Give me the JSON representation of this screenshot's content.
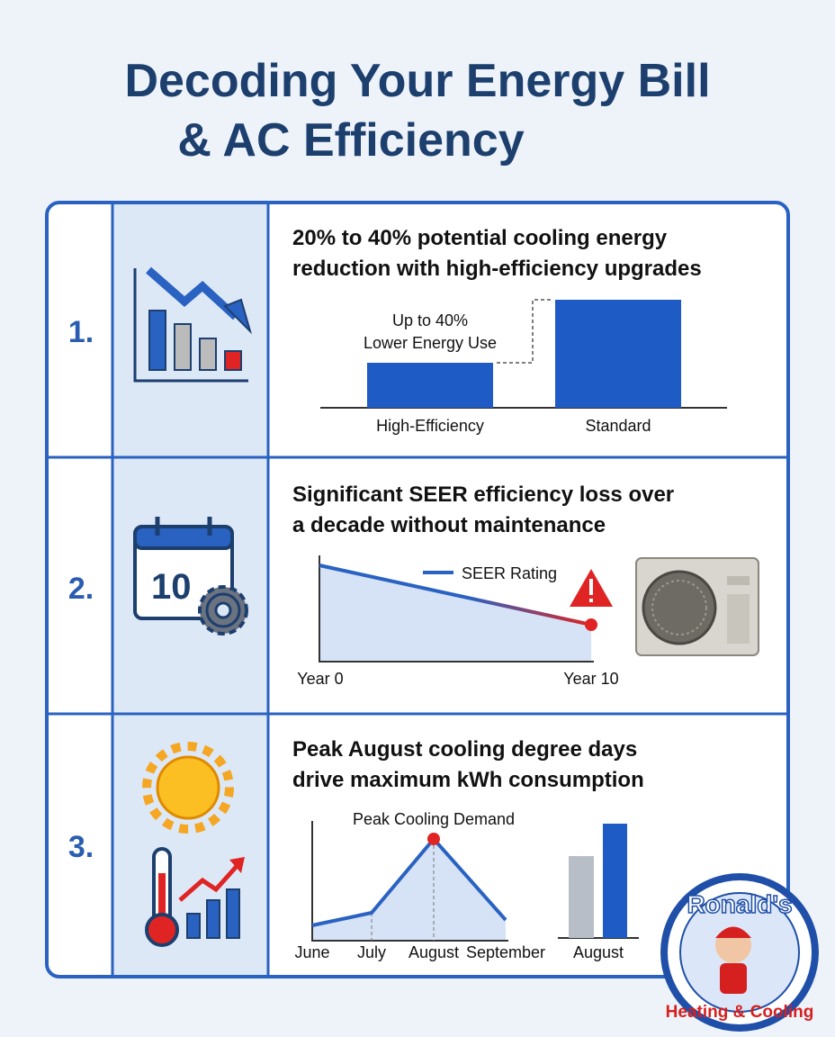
{
  "header": {
    "title_lines": [
      "Decoding Your Energy Bill",
      "& AC Efficiency"
    ]
  },
  "rows": [
    {
      "number": "1.",
      "heading_lines": [
        "20% to 40% potential cooling energy",
        "reduction with high-efficiency upgrades"
      ],
      "annotation_lines": [
        "Up to 40%",
        "Lower Energy Use"
      ],
      "labels": [
        "High-Efficiency",
        "Standard"
      ]
    },
    {
      "number": "2.",
      "heading_lines": [
        "Significant SEER efficiency loss over",
        "a decade without maintenance"
      ],
      "legend": "SEER Rating",
      "labels": [
        "Year 0",
        "Year 10"
      ]
    },
    {
      "number": "3.",
      "heading_lines": [
        "Peak August cooling degree days",
        "drive maximum kWh consumption"
      ],
      "annotation": "Peak Cooling Demand",
      "labels": [
        "June",
        "July",
        "August",
        "September"
      ],
      "bar_label": "August"
    }
  ],
  "logo": {
    "name": "Ronald's",
    "tagline": "Heating & Cooling"
  }
}
